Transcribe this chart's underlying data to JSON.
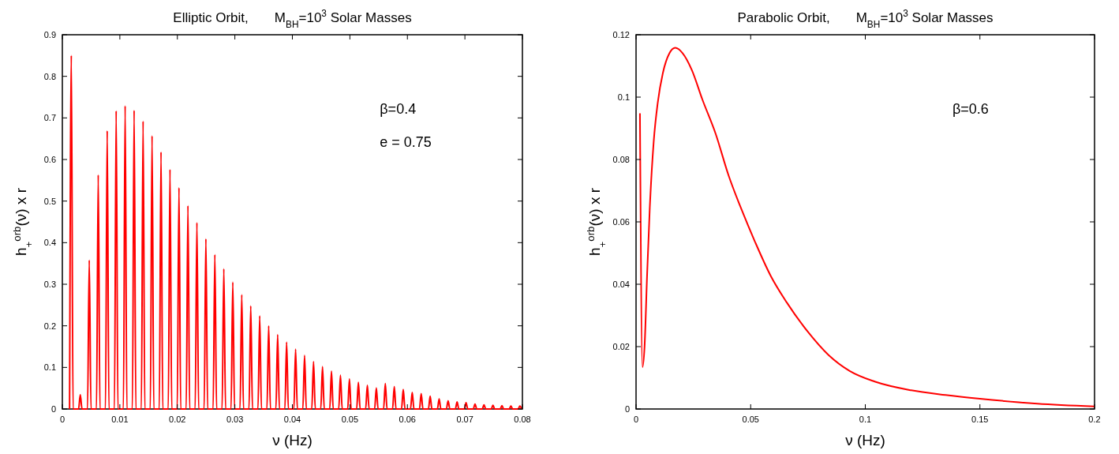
{
  "chart_data": [
    {
      "type": "line",
      "title": "Elliptic Orbit,       M$_{BH}$=10$^{3}$ Solar Masses",
      "xlabel": "ν (Hz)",
      "ylabel": "h$_{+}$$^{orb}$(ν) x r",
      "annotations": [
        "β=0.4",
        "e = 0.75"
      ],
      "xlim": [
        0,
        0.08
      ],
      "ylim": [
        0,
        0.9
      ],
      "xticks": [
        0,
        0.01,
        0.02,
        0.03,
        0.04,
        0.05,
        0.06,
        0.07,
        0.08
      ],
      "yticks": [
        0,
        0.1,
        0.2,
        0.3,
        0.4,
        0.5,
        0.6,
        0.7,
        0.8,
        0.9
      ],
      "line_style": "solid",
      "series": [
        {
          "color": "#ff0000",
          "x": [
            0.00126,
            0.00156,
            0.00186,
            0.00282,
            0.00312,
            0.00342,
            0.00438,
            0.00468,
            0.00498,
            0.00594,
            0.00624,
            0.00654,
            0.0075,
            0.0078,
            0.0081,
            0.00906,
            0.00936,
            0.00966,
            0.01062,
            0.01092,
            0.01122,
            0.01218,
            0.01248,
            0.01278,
            0.01374,
            0.01404,
            0.01434,
            0.0153,
            0.0156,
            0.0159,
            0.01686,
            0.01716,
            0.01746,
            0.01842,
            0.01872,
            0.01902,
            0.01998,
            0.02028,
            0.02058,
            0.02154,
            0.02184,
            0.02214,
            0.0231,
            0.0234,
            0.0237,
            0.02466,
            0.02496,
            0.02526,
            0.02622,
            0.02652,
            0.02682,
            0.02778,
            0.02808,
            0.02838,
            0.02934,
            0.02964,
            0.02994,
            0.0309,
            0.0312,
            0.0315,
            0.03246,
            0.03276,
            0.03306,
            0.03402,
            0.03432,
            0.03462,
            0.03558,
            0.03588,
            0.03618,
            0.03714,
            0.03744,
            0.03774,
            0.0387,
            0.039,
            0.0393,
            0.04026,
            0.04056,
            0.04086,
            0.04182,
            0.04212,
            0.04242,
            0.04338,
            0.04368,
            0.04398,
            0.04494,
            0.04524,
            0.04554,
            0.0465,
            0.0468,
            0.0471,
            0.04806,
            0.04836,
            0.04866,
            0.04962,
            0.04992,
            0.05022,
            0.05118,
            0.05148,
            0.05178,
            0.05274,
            0.05304,
            0.05334,
            0.0543,
            0.0546,
            0.0549,
            0.05586,
            0.05616,
            0.05646,
            0.05742,
            0.05772,
            0.05802,
            0.05898,
            0.05928,
            0.05958,
            0.06054,
            0.06084,
            0.06114,
            0.0621,
            0.0624,
            0.0627,
            0.06366,
            0.06396,
            0.06426,
            0.06522,
            0.06552,
            0.06582,
            0.06678,
            0.06708,
            0.06738,
            0.06834,
            0.06864,
            0.06894,
            0.0699,
            0.0702,
            0.0705,
            0.07146,
            0.07176,
            0.07206,
            0.07302,
            0.07332,
            0.07362,
            0.07458,
            0.07488,
            0.07518,
            0.07614,
            0.07644,
            0.07674,
            0.0777,
            0.078,
            0.0783,
            0.07926,
            0.07956,
            0.07986
          ],
          "values": [
            0,
            0.85,
            0,
            0,
            0.034,
            0,
            0,
            0.358,
            0,
            0,
            0.563,
            0,
            0,
            0.669,
            0,
            0,
            0.717,
            0,
            0,
            0.729,
            0,
            0,
            0.718,
            0,
            0,
            0.692,
            0,
            0,
            0.657,
            0,
            0,
            0.618,
            0,
            0,
            0.576,
            0,
            0,
            0.532,
            0,
            0,
            0.489,
            0,
            0,
            0.448,
            0,
            0,
            0.409,
            0,
            0,
            0.371,
            0,
            0,
            0.337,
            0,
            0,
            0.305,
            0,
            0,
            0.275,
            0,
            0,
            0.248,
            0,
            0,
            0.224,
            0,
            0,
            0.2,
            0,
            0,
            0.179,
            0,
            0,
            0.161,
            0,
            0,
            0.144,
            0,
            0,
            0.129,
            0,
            0,
            0.114,
            0,
            0,
            0.102,
            0,
            0,
            0.091,
            0,
            0,
            0.081,
            0,
            0,
            0.072,
            0,
            0,
            0.064,
            0,
            0,
            0.057,
            0,
            0,
            0.051,
            0,
            0,
            0.061,
            0,
            0,
            0.054,
            0,
            0,
            0.047,
            0,
            0,
            0.04,
            0,
            0,
            0.037,
            0,
            0,
            0.031,
            0,
            0,
            0.024,
            0,
            0,
            0.02,
            0,
            0,
            0.017,
            0,
            0,
            0.015,
            0,
            0,
            0.012,
            0,
            0,
            0.01,
            0,
            0,
            0.009,
            0,
            0,
            0.008,
            0,
            0,
            0.007,
            0,
            0,
            0.007,
            0
          ]
        }
      ]
    },
    {
      "type": "line",
      "title": "Parabolic Orbit,       M$_{BH}$=10$^{3}$ Solar Masses",
      "xlabel": "ν (Hz)",
      "ylabel": "h$_{+}$$^{orb}$(ν) x r",
      "annotations": [
        "β=0.6"
      ],
      "xlim": [
        0,
        0.2
      ],
      "ylim": [
        0,
        0.12
      ],
      "xticks": [
        0,
        0.05,
        0.1,
        0.15,
        0.2
      ],
      "yticks": [
        0,
        0.02,
        0.04,
        0.06,
        0.08,
        0.1,
        0.12
      ],
      "line_style": "solid",
      "series": [
        {
          "color": "#ff0000",
          "x": [
            0.0017,
            0.0028,
            0.0037,
            0.0048,
            0.006,
            0.0077,
            0.0095,
            0.0117,
            0.0146,
            0.0171,
            0.0203,
            0.0244,
            0.0289,
            0.0347,
            0.0404,
            0.0461,
            0.0519,
            0.0588,
            0.0657,
            0.0748,
            0.084,
            0.0932,
            0.1041,
            0.12,
            0.135,
            0.15,
            0.175,
            0.2
          ],
          "values": [
            0.0948,
            0.0134,
            0.0198,
            0.0426,
            0.0646,
            0.0857,
            0.0984,
            0.1077,
            0.1141,
            0.1158,
            0.1141,
            0.1086,
            0.0993,
            0.0883,
            0.0748,
            0.0638,
            0.0536,
            0.0426,
            0.0342,
            0.0249,
            0.0173,
            0.0122,
            0.0088,
            0.006,
            0.0045,
            0.0033,
            0.0017,
            0.0008
          ]
        }
      ]
    }
  ]
}
